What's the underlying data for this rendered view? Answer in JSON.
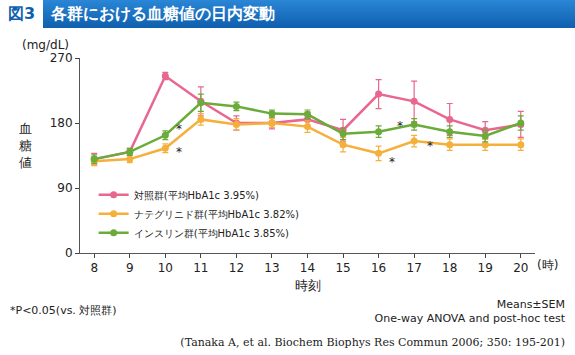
{
  "header": {
    "label": "図3",
    "title": "各群における血糖値の日内変動"
  },
  "chart_data": {
    "type": "line",
    "x": [
      8,
      9,
      10,
      11,
      12,
      13,
      14,
      15,
      16,
      17,
      18,
      19,
      20
    ],
    "series": [
      {
        "name": "対照群(平均HbA1c 3.95%)",
        "color": "#e9668f",
        "values": [
          130,
          140,
          245,
          210,
          180,
          180,
          185,
          170,
          220,
          210,
          185,
          170,
          178
        ],
        "error": [
          8,
          5,
          5,
          20,
          10,
          8,
          10,
          15,
          20,
          28,
          22,
          12,
          18
        ]
      },
      {
        "name": "ナテグリニド群(平均HbA1c 3.82%)",
        "color": "#f5b03c",
        "values": [
          127,
          130,
          145,
          185,
          178,
          180,
          175,
          150,
          138,
          155,
          150,
          150,
          150
        ],
        "error": [
          6,
          5,
          6,
          8,
          8,
          6,
          8,
          10,
          10,
          8,
          8,
          8,
          8
        ]
      },
      {
        "name": "インスリン群(平均HbA1c 3.85%)",
        "color": "#6aab3a",
        "values": [
          130,
          140,
          163,
          208,
          203,
          193,
          192,
          165,
          168,
          178,
          168,
          162,
          180
        ],
        "error": [
          6,
          5,
          6,
          12,
          6,
          5,
          6,
          8,
          8,
          8,
          8,
          8,
          10
        ]
      }
    ],
    "xlim": [
      7.6,
      20.4
    ],
    "xticks": [
      8,
      9,
      10,
      11,
      12,
      13,
      14,
      15,
      16,
      17,
      18,
      19,
      20
    ],
    "ylim": [
      0,
      270
    ],
    "yticks": [
      0,
      90,
      180,
      270
    ],
    "y_label": "血糖値",
    "y_unit": "(mg/dL)",
    "x_label": "時刻",
    "x_unit": "(時)",
    "legend": "lower left",
    "marker": "circle",
    "annotations": [
      {
        "text": "*",
        "x": 10.25,
        "y": 172
      },
      {
        "text": "*",
        "x": 10.25,
        "y": 140
      },
      {
        "text": "*",
        "x": 16.45,
        "y": 176
      },
      {
        "text": "*",
        "x": 16.25,
        "y": 126
      },
      {
        "text": "*",
        "x": 17.3,
        "y": 148
      }
    ]
  },
  "footer": {
    "note": "*P<0.05(vs. 対照群)",
    "stats": [
      "Means±SEM",
      "One-way ANOVA and post-hoc test"
    ],
    "citation": "(Tanaka A, et al. Biochem Biophys Res Commun 2006; 350: 195-201)"
  }
}
